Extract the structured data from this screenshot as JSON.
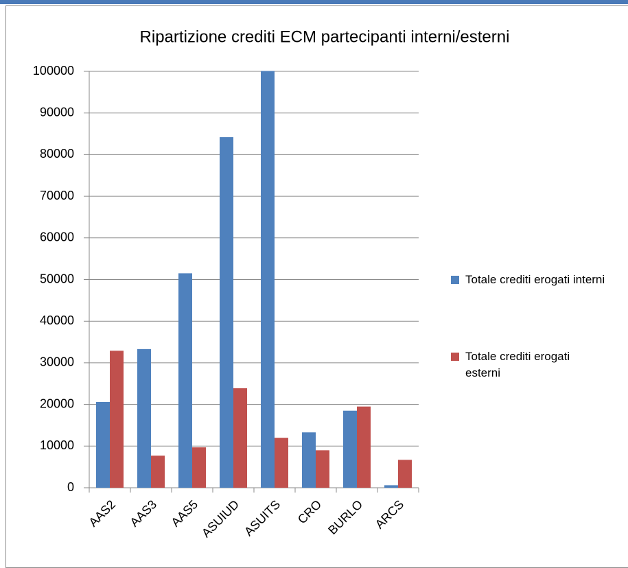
{
  "chart_data": {
    "type": "bar",
    "title": "Ripartizione crediti ECM partecipanti interni/esterni",
    "categories": [
      "AAS2",
      "AAS3",
      "AAS5",
      "ASUIUD",
      "ASUITS",
      "CRO",
      "BURLO",
      "ARCS"
    ],
    "series": [
      {
        "name": "Totale crediti erogati interni",
        "color": "#4f81bd",
        "values": [
          20600,
          33300,
          51500,
          84200,
          100100,
          13300,
          18500,
          600
        ]
      },
      {
        "name": "Totale crediti erogati esterni",
        "color": "#c0504d",
        "values": [
          32900,
          7700,
          9700,
          23900,
          12000,
          9000,
          19500,
          6700
        ]
      }
    ],
    "ylim": [
      0,
      100000
    ],
    "yticks": [
      0,
      10000,
      20000,
      30000,
      40000,
      50000,
      60000,
      70000,
      80000,
      90000,
      100000
    ],
    "grid": true,
    "legend": "right"
  }
}
